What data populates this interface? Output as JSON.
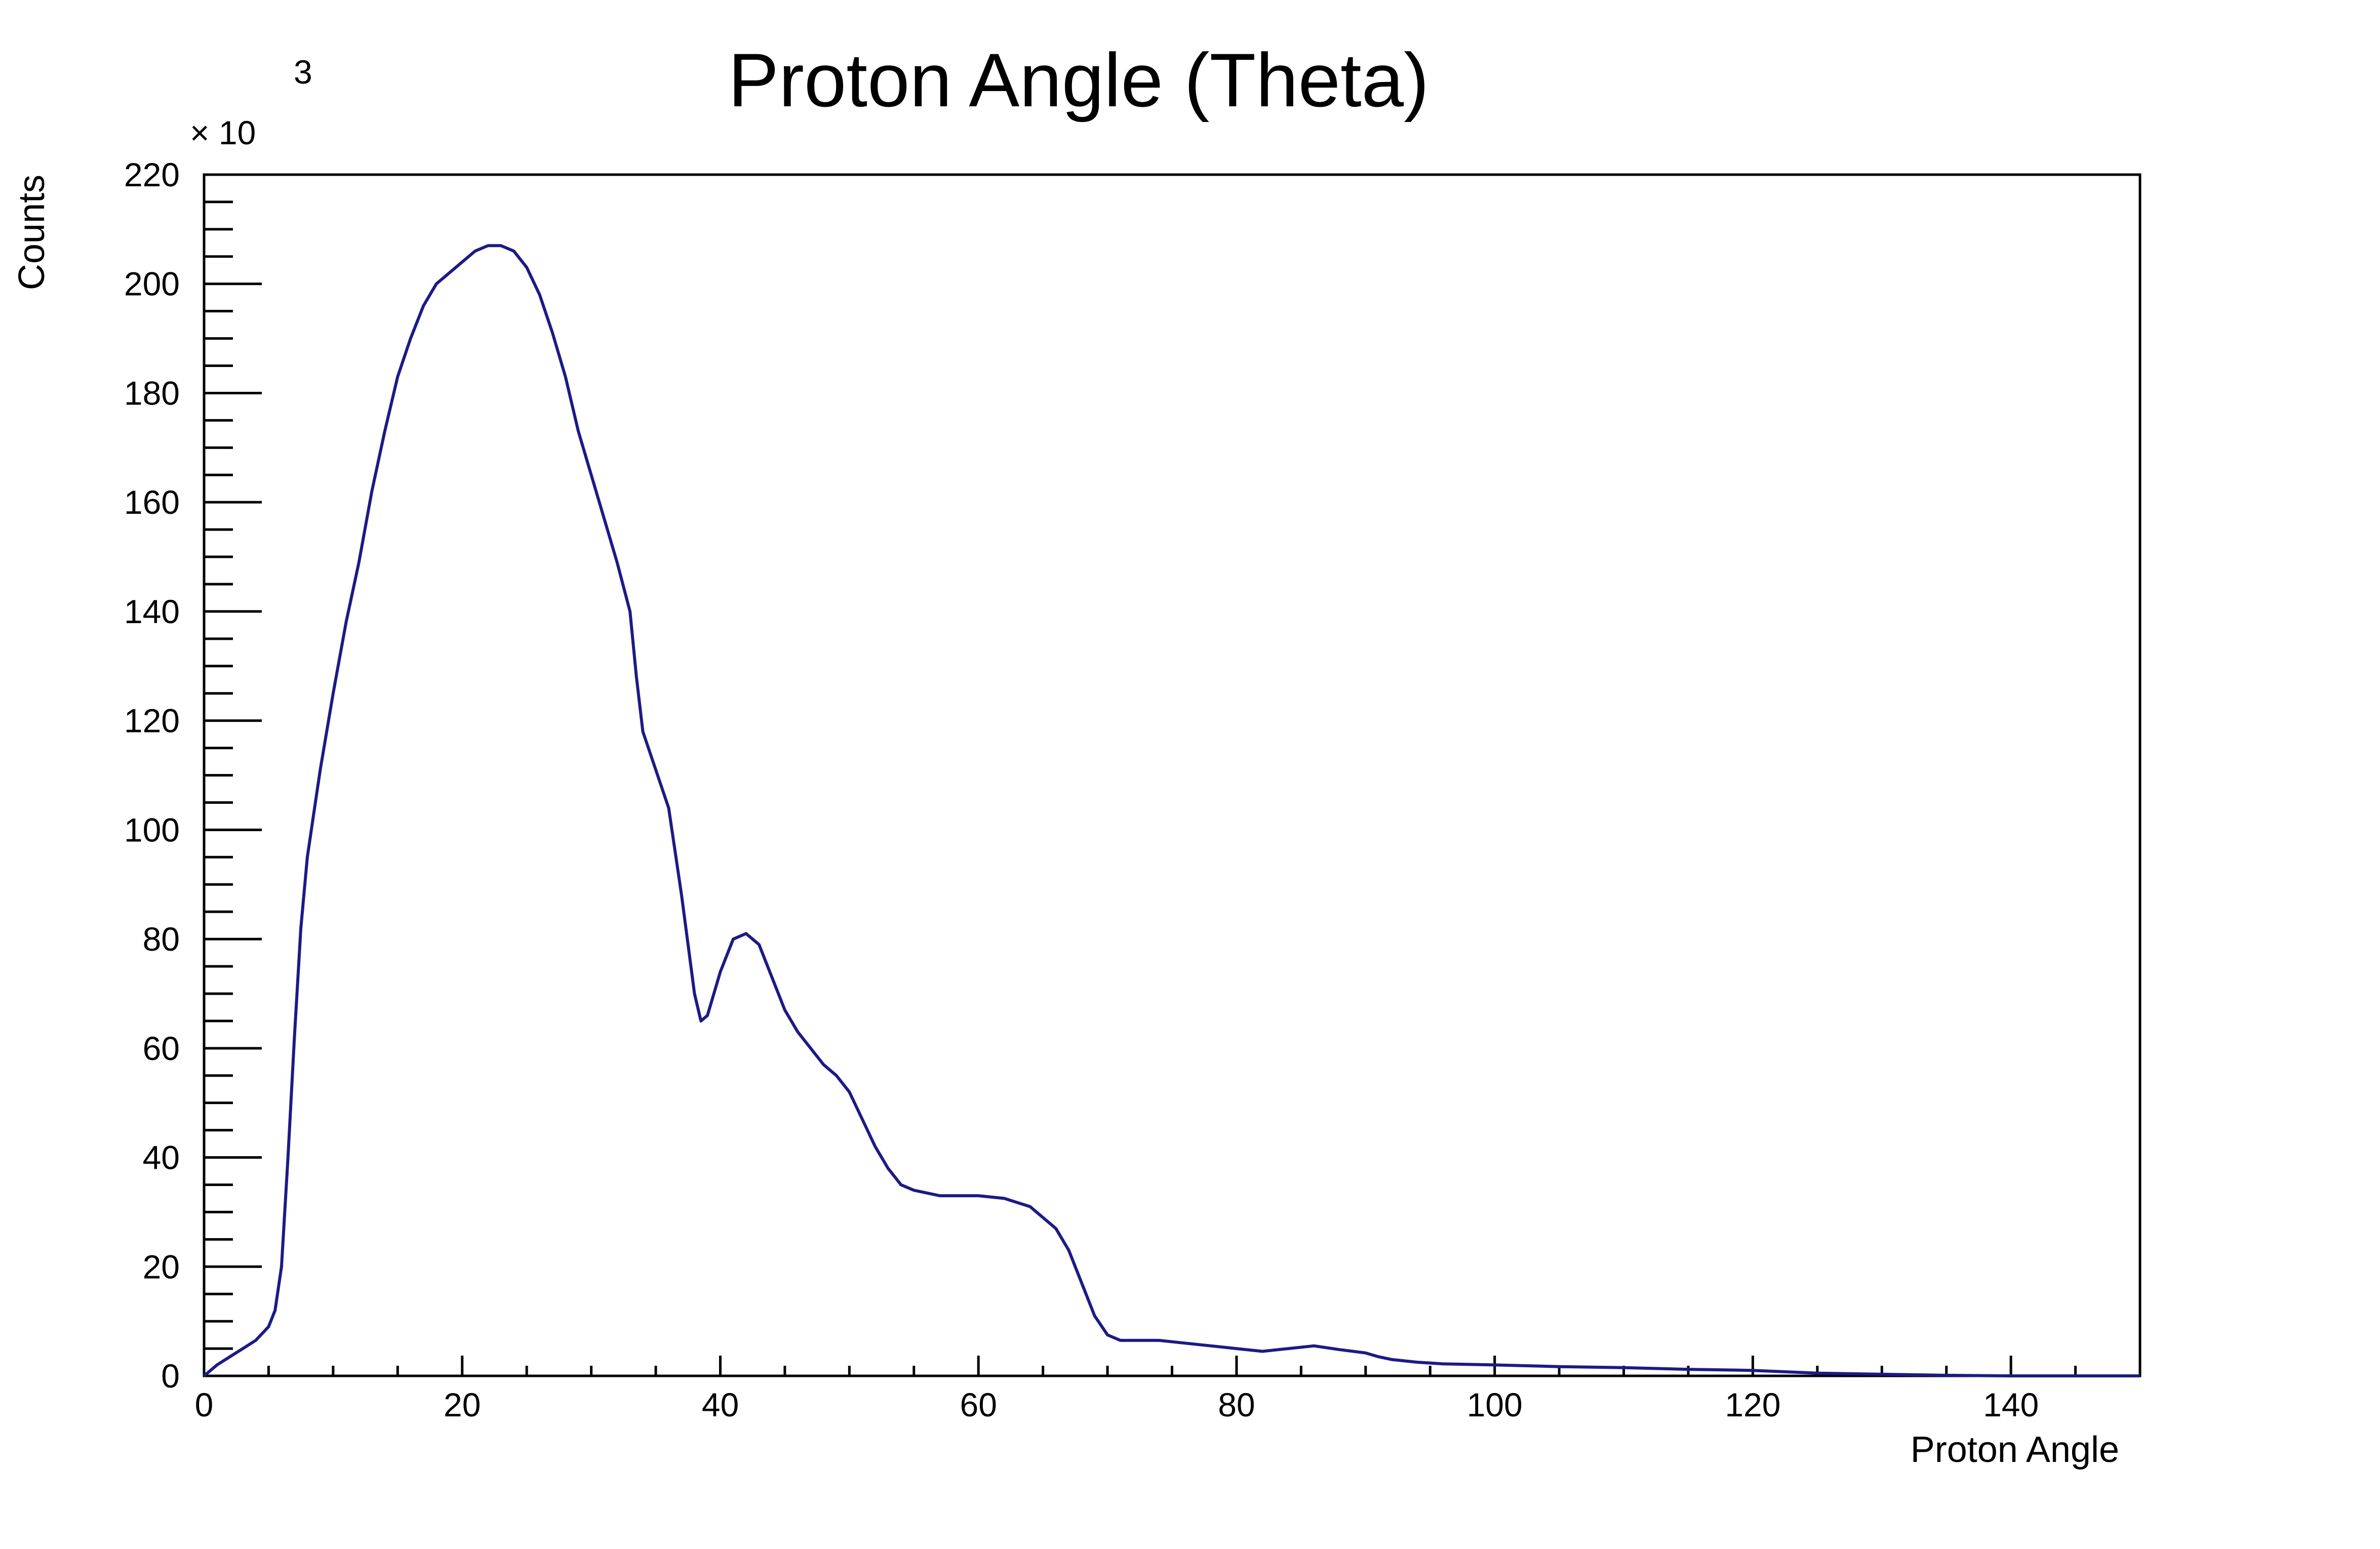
{
  "chart_data": {
    "type": "line",
    "title": "Proton Angle (Theta)",
    "xlabel": "Proton Angle",
    "ylabel": "Counts",
    "y_multiplier": {
      "base": "× 10",
      "exponent": "3"
    },
    "xlim": [
      0,
      150
    ],
    "ylim": [
      0,
      220
    ],
    "x_ticks": [
      0,
      20,
      40,
      60,
      80,
      100,
      120,
      140
    ],
    "x_tick_labels": [
      "0",
      "20",
      "40",
      "60",
      "80",
      "100",
      "120",
      "140"
    ],
    "x_minor_step": 5,
    "y_ticks": [
      0,
      20,
      40,
      60,
      80,
      100,
      120,
      140,
      160,
      180,
      200,
      220
    ],
    "y_tick_labels": [
      "0",
      "20",
      "40",
      "60",
      "80",
      "100",
      "120",
      "140",
      "160",
      "180",
      "200",
      "220"
    ],
    "y_minor_step": 5,
    "grid": false,
    "legend": "none",
    "colors": {
      "line": "#1a1a8c",
      "axis": "#000000"
    },
    "series": [
      {
        "x": [
          0,
          1,
          2,
          3,
          4,
          5,
          5.5,
          6,
          6.5,
          7,
          7.5,
          8,
          8.5,
          9,
          10,
          11,
          12,
          13,
          14,
          15,
          16,
          17,
          18,
          19,
          20,
          21,
          22,
          23,
          24,
          25,
          26,
          27,
          28,
          29,
          30,
          31,
          32,
          33,
          33.5,
          34,
          35,
          36,
          37,
          38,
          38.5,
          39,
          40,
          41,
          42,
          43,
          44,
          45,
          46,
          47,
          48,
          49,
          50,
          51,
          52,
          53,
          54,
          55,
          56,
          57,
          58,
          59,
          60,
          62,
          64,
          66,
          67,
          68,
          69,
          70,
          71,
          72,
          73,
          74,
          76,
          78,
          80,
          82,
          84,
          86,
          88,
          90,
          91,
          92,
          94,
          96,
          100,
          105,
          110,
          115,
          120,
          122,
          125,
          130,
          135,
          140,
          145,
          150
        ],
        "y": [
          0,
          2,
          3.5,
          5,
          6.5,
          9,
          12,
          20,
          40,
          62,
          82,
          95,
          103,
          111,
          125,
          138,
          149,
          162,
          173,
          183,
          190,
          196,
          200,
          202,
          204,
          206,
          207,
          207,
          206,
          203,
          198,
          191,
          183,
          173,
          165,
          157,
          149,
          140,
          128,
          118,
          111,
          104,
          88,
          70,
          65,
          66,
          74,
          80,
          81,
          79,
          73,
          67,
          63,
          60,
          57,
          55,
          52,
          47,
          42,
          38,
          35,
          34,
          33.5,
          33,
          33,
          33,
          33,
          32.5,
          31,
          27,
          23,
          17,
          11,
          7.5,
          6.5,
          6.5,
          6.5,
          6.5,
          6,
          5.5,
          5,
          4.5,
          5,
          5.5,
          4.8,
          4.2,
          3.5,
          3,
          2.5,
          2.2,
          2,
          1.7,
          1.5,
          1.2,
          1,
          0.8,
          0.5,
          0.3,
          0.1,
          0,
          0,
          0
        ]
      }
    ]
  }
}
